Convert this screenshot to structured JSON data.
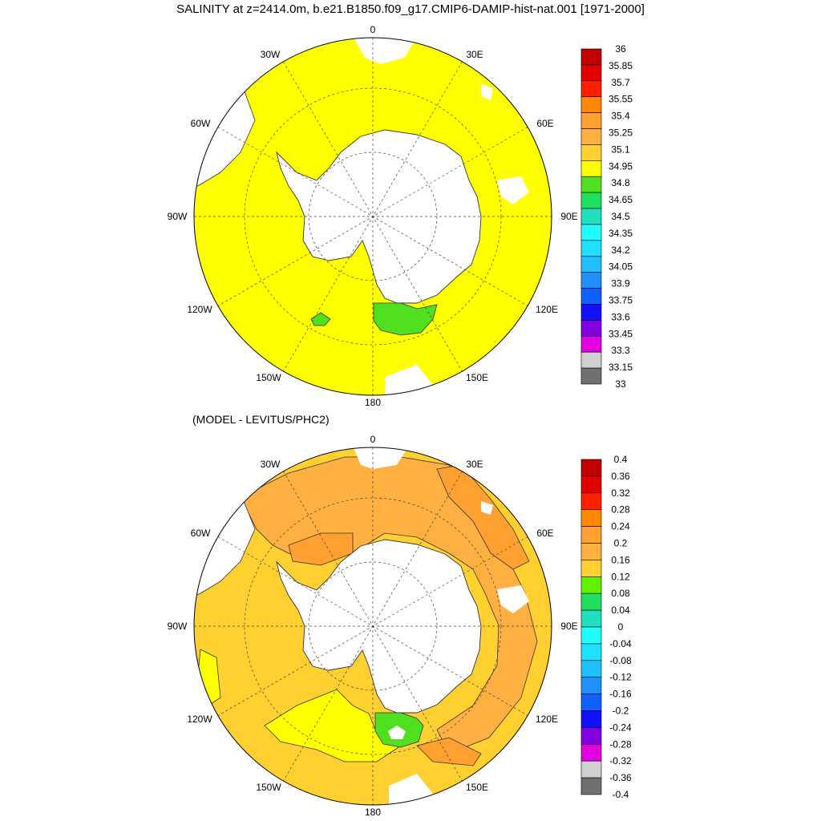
{
  "title": "SALINITY at z=2414.0m, b.e21.B1850.f09_g17.CMIP6-DAMIP-hist-nat.001 [1971-2000]",
  "subtitle": "(MODEL - LEVITUS/PHC2)",
  "longitude_labels": {
    "top": [
      "0",
      "30E",
      "60E",
      "90E",
      "120E",
      "150E",
      "180",
      "150W",
      "120W",
      "90W",
      "60W",
      "30W"
    ],
    "bottom": [
      "0",
      "30E",
      "60E",
      "90E",
      "120E",
      "150E",
      "180",
      "150W",
      "120W",
      "90W",
      "60W",
      "30W"
    ]
  },
  "top_colorbar": {
    "labels": [
      "36",
      "35.85",
      "35.7",
      "35.55",
      "35.4",
      "35.25",
      "35.1",
      "34.95",
      "34.8",
      "34.65",
      "34.5",
      "34.35",
      "34.2",
      "34.05",
      "33.9",
      "33.75",
      "33.6",
      "33.45",
      "33.3",
      "33.15",
      "33"
    ],
    "colors": [
      "#c00000",
      "#e00000",
      "#ff2000",
      "#ff8800",
      "#ffa030",
      "#ffb040",
      "#ffd030",
      "#ffff00",
      "#50e020",
      "#20e060",
      "#20e0c0",
      "#20ffff",
      "#20e0ff",
      "#20c0ff",
      "#2090ff",
      "#1060ff",
      "#1010ff",
      "#8000e0",
      "#e000e0",
      "#d0d0d0",
      "#707070"
    ]
  },
  "bottom_colorbar": {
    "labels": [
      "0.4",
      "0.36",
      "0.32",
      "0.28",
      "0.24",
      "0.2",
      "0.16",
      "0.12",
      "0.08",
      "0.04",
      "0",
      "-0.04",
      "-0.08",
      "-0.12",
      "-0.16",
      "-0.2",
      "-0.24",
      "-0.28",
      "-0.32",
      "-0.36",
      "-0.4"
    ],
    "colors": [
      "#c00000",
      "#e00000",
      "#ff2000",
      "#ff8800",
      "#ffa030",
      "#ffb040",
      "#ffd030",
      "#60f000",
      "#20e060",
      "#20e0c0",
      "#20ffff",
      "#20e0ff",
      "#20c0ff",
      "#2090ff",
      "#1060ff",
      "#1010ff",
      "#8000e0",
      "#e000e0",
      "#d0d0d0",
      "#707070"
    ]
  },
  "colors": {
    "top_field": "#ffff00",
    "top_anomaly_patch": "#50e020",
    "bottom_field_main": "#ffd030",
    "bottom_field_orange": "#ffb040",
    "bottom_field_darkorange": "#ffa030",
    "bottom_field_yellow": "#ffff00",
    "bottom_field_green": "#50e020",
    "land": "#ffffff"
  }
}
